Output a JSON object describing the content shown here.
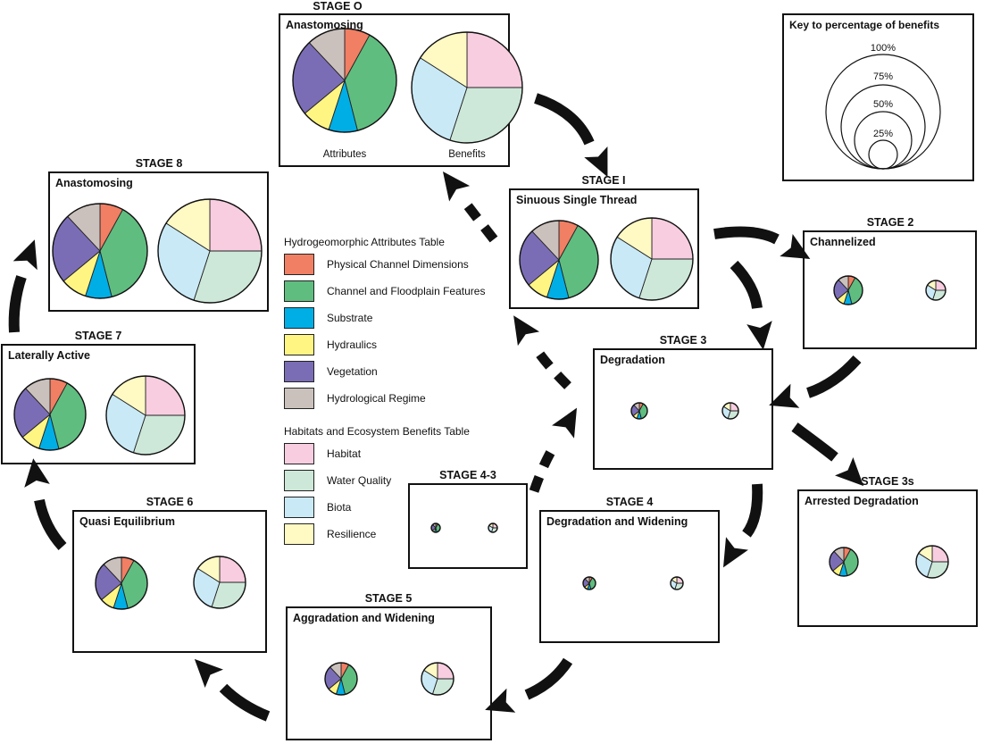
{
  "attributes_table": {
    "title": "Hydrogeomorphic Attributes Table",
    "items": [
      {
        "label": "Physical Channel Dimensions",
        "color": "#f07f64"
      },
      {
        "label": "Channel and Floodplain Features",
        "color": "#5fbd80"
      },
      {
        "label": "Substrate",
        "color": "#00aee6"
      },
      {
        "label": "Hydraulics",
        "color": "#fff583"
      },
      {
        "label": "Vegetation",
        "color": "#7b6db5"
      },
      {
        "label": "Hydrological Regime",
        "color": "#cbc1bc"
      }
    ]
  },
  "benefits_table": {
    "title": "Habitats and Ecosystem Benefits Table",
    "items": [
      {
        "label": "Habitat",
        "color": "#f8cde0"
      },
      {
        "label": "Water Quality",
        "color": "#cde8d8"
      },
      {
        "label": "Biota",
        "color": "#c9e9f6"
      },
      {
        "label": "Resilience",
        "color": "#fff9c4"
      }
    ]
  },
  "key": {
    "title": "Key to percentage of benefits",
    "levels": [
      "100%",
      "75%",
      "50%",
      "25%"
    ]
  },
  "stages": [
    {
      "id": "stage-0",
      "stage": "STAGE O",
      "name": "Anastomosing",
      "attributes_label": "Attributes",
      "benefits_label": "Benefits",
      "scale": 1.0
    },
    {
      "id": "stage-1",
      "stage": "STAGE I",
      "name": "Sinuous Single Thread",
      "scale": 0.83
    },
    {
      "id": "stage-2",
      "stage": "STAGE 2",
      "name": "Channelized",
      "scale": 0.18
    },
    {
      "id": "stage-3",
      "stage": "STAGE 3",
      "name": "Degradation",
      "scale": 0.1
    },
    {
      "id": "stage-3s",
      "stage": "STAGE 3s",
      "name": "Arrested Degradation",
      "scale": 0.28
    },
    {
      "id": "stage-4",
      "stage": "STAGE 4",
      "name": "Degradation and Widening",
      "scale": 0.08
    },
    {
      "id": "stage-4-3",
      "stage": "STAGE 4-3",
      "name": "",
      "scale": 0.06
    },
    {
      "id": "stage-5",
      "stage": "STAGE 5",
      "name": "Aggradation and Widening",
      "scale": 0.28
    },
    {
      "id": "stage-6",
      "stage": "STAGE 6",
      "name": "Quasi Equilibrium",
      "scale": 0.47
    },
    {
      "id": "stage-7",
      "stage": "STAGE 7",
      "name": "Laterally Active",
      "scale": 0.72
    },
    {
      "id": "stage-8",
      "stage": "STAGE 8",
      "name": "Anastomosing",
      "scale": 1.0
    }
  ]
}
